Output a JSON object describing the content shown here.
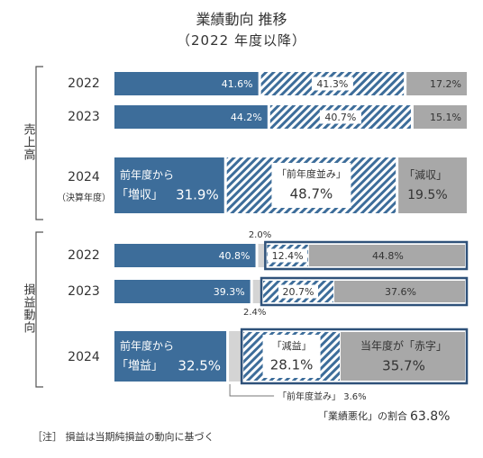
{
  "title": "業績動向 推移",
  "subtitle": "（2022 年度以降）",
  "colors": {
    "increase": "#3d6d9a",
    "flat_stripe": "#3d6d9a",
    "decrease": "#a8a8a8",
    "frame": "#2f527a",
    "text_dark": "#333333"
  },
  "note": "［注］ 損益は当期純損益の動向に基づく",
  "chart_data": [
    {
      "type": "bar",
      "group_label": "売上高",
      "categories": [
        "2022",
        "2023",
        "2024"
      ],
      "category_sublabels": [
        "",
        "",
        "（決算年度）"
      ],
      "series": [
        {
          "name": "増収",
          "values": [
            41.6,
            44.2,
            31.9
          ]
        },
        {
          "name": "前年度並み",
          "values": [
            41.3,
            40.7,
            48.7
          ]
        },
        {
          "name": "減収",
          "values": [
            17.2,
            15.1,
            19.5
          ]
        }
      ],
      "labels_2024": {
        "increase_line1": "前年度から",
        "increase_line2": "「増収」",
        "flat": "「前年度並み」",
        "decrease": "「減収」"
      },
      "ylim": [
        0,
        100
      ]
    },
    {
      "type": "bar",
      "group_label": "損益動向",
      "categories": [
        "2022",
        "2023",
        "2024"
      ],
      "series": [
        {
          "name": "増益",
          "values": [
            40.8,
            39.3,
            32.5
          ]
        },
        {
          "name": "前年度並み",
          "values": [
            2.0,
            2.4,
            3.6
          ]
        },
        {
          "name": "減益",
          "values": [
            12.4,
            20.7,
            28.1
          ]
        },
        {
          "name": "赤字",
          "values": [
            44.8,
            37.6,
            35.7
          ]
        }
      ],
      "labels_2024": {
        "increase_line1": "前年度から",
        "increase_line2": "「増益」",
        "decrease": "「減益」",
        "deficit": "当年度が「赤字」",
        "flat_note": "「前年度並み」 3.6%"
      },
      "annotations": {
        "flat_2022": "2.0%",
        "flat_2023": "2.4%",
        "worsening_label": "「業績悪化」の割合",
        "worsening_value": "63.8%"
      },
      "ylim": [
        0,
        100
      ]
    }
  ]
}
